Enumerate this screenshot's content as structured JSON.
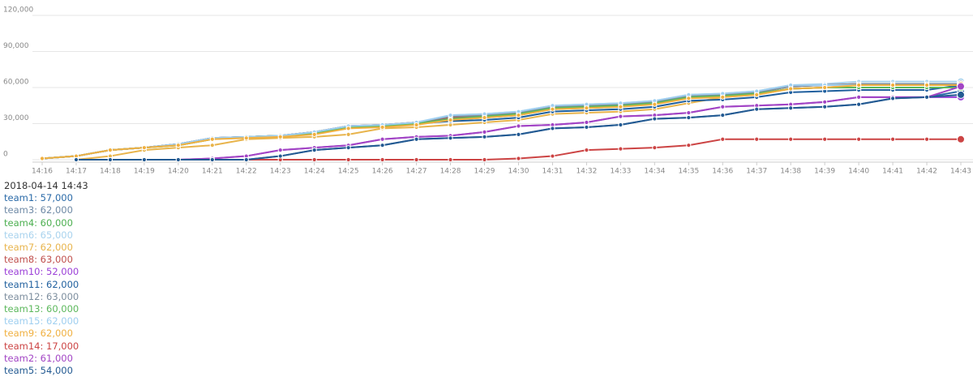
{
  "chart_data": {
    "type": "line",
    "categories": [
      "14:16",
      "14:17",
      "14:18",
      "14:19",
      "14:20",
      "14:21",
      "14:22",
      "14:23",
      "14:24",
      "14:25",
      "14:26",
      "14:27",
      "14:28",
      "14:29",
      "14:30",
      "14:31",
      "14:32",
      "14:33",
      "14:34",
      "14:35",
      "14:36",
      "14:37",
      "14:38",
      "14:39",
      "14:40",
      "14:41",
      "14:42",
      "14:43"
    ],
    "ylim": [
      0,
      120000
    ],
    "yticks": [
      0,
      {
        "value": 30000,
        "label": "30,000"
      },
      {
        "value": 60000,
        "label": "60,000"
      },
      {
        "value": 90000,
        "label": "90,000"
      },
      {
        "value": 120000,
        "label": "120,000"
      }
    ],
    "grid": true,
    "series": [
      {
        "name": "team1",
        "color": "#2a6aa8",
        "values": [
          null,
          0,
          0,
          0,
          0,
          0,
          0,
          3000,
          8000,
          10000,
          12000,
          17000,
          18000,
          19000,
          21000,
          26000,
          27000,
          29000,
          34000,
          35000,
          37000,
          42000,
          43000,
          44000,
          46000,
          51000,
          52000,
          57000
        ]
      },
      {
        "name": "team3",
        "color": "#6f8aa6",
        "values": [
          1000,
          3000,
          8000,
          10000,
          13000,
          18000,
          19000,
          20000,
          23000,
          28000,
          29000,
          31000,
          35000,
          37000,
          39000,
          44000,
          45000,
          46000,
          48000,
          53000,
          54000,
          56000,
          61000,
          62000,
          62000,
          62000,
          62000,
          62000
        ]
      },
      {
        "name": "team4",
        "color": "#4caf50",
        "values": [
          1000,
          3000,
          8000,
          10000,
          12000,
          17000,
          19000,
          20000,
          22000,
          27000,
          28000,
          30000,
          33000,
          35000,
          37000,
          42000,
          43000,
          44000,
          47000,
          52000,
          53000,
          55000,
          59000,
          60000,
          60000,
          60000,
          60000,
          60000
        ]
      },
      {
        "name": "team6",
        "color": "#a9d3ee",
        "values": [
          1000,
          3000,
          8000,
          10000,
          13000,
          18000,
          19000,
          20000,
          23000,
          28000,
          29000,
          31000,
          37000,
          38000,
          40000,
          45000,
          46000,
          47000,
          49000,
          54000,
          55000,
          57000,
          62000,
          63000,
          65000,
          65000,
          65000,
          65000
        ]
      },
      {
        "name": "team7",
        "color": "#e8b44c",
        "values": [
          null,
          0,
          3000,
          8000,
          10000,
          12000,
          17000,
          18000,
          19000,
          21000,
          26000,
          27000,
          29000,
          31000,
          33000,
          38000,
          39000,
          40000,
          42000,
          47000,
          52000,
          54000,
          59000,
          60000,
          62000,
          62000,
          62000,
          62000
        ]
      },
      {
        "name": "team8",
        "color": "#c0504d",
        "values": [
          1000,
          3000,
          8000,
          10000,
          13000,
          18000,
          19000,
          20000,
          23000,
          28000,
          29000,
          31000,
          35000,
          37000,
          39000,
          44000,
          45000,
          46000,
          48000,
          53000,
          54000,
          56000,
          61000,
          62000,
          63000,
          63000,
          63000,
          63000
        ]
      },
      {
        "name": "team10",
        "color": "#9b3fd8",
        "values": [
          null,
          0,
          0,
          0,
          0,
          1000,
          3000,
          8000,
          10000,
          12000,
          17000,
          19000,
          20000,
          23000,
          28000,
          29000,
          31000,
          36000,
          37000,
          39000,
          44000,
          45000,
          46000,
          48000,
          52000,
          52000,
          52000,
          52000
        ]
      },
      {
        "name": "team11",
        "color": "#1f5f9e",
        "values": [
          1000,
          3000,
          8000,
          10000,
          13000,
          18000,
          19000,
          20000,
          23000,
          27000,
          28000,
          30000,
          32000,
          33000,
          35000,
          40000,
          41000,
          42000,
          44000,
          49000,
          50000,
          52000,
          56000,
          57000,
          58000,
          58000,
          58000,
          62000
        ]
      },
      {
        "name": "team12",
        "color": "#7d8e9e",
        "values": [
          1000,
          3000,
          8000,
          10000,
          13000,
          18000,
          19000,
          20000,
          23000,
          28000,
          29000,
          31000,
          36000,
          37000,
          39000,
          44000,
          45000,
          46000,
          48000,
          53000,
          54000,
          56000,
          61000,
          62000,
          63000,
          63000,
          63000,
          63000
        ]
      },
      {
        "name": "team13",
        "color": "#5cb85c",
        "values": [
          1000,
          3000,
          8000,
          10000,
          12000,
          17000,
          19000,
          20000,
          22000,
          27000,
          28000,
          30000,
          34000,
          36000,
          38000,
          43000,
          44000,
          45000,
          47000,
          52000,
          53000,
          55000,
          59000,
          60000,
          60000,
          60000,
          60000,
          60000
        ]
      },
      {
        "name": "team15",
        "color": "#9fcff0",
        "values": [
          1000,
          3000,
          8000,
          10000,
          13000,
          18000,
          19000,
          20000,
          23000,
          28000,
          29000,
          31000,
          37000,
          38000,
          40000,
          45000,
          46000,
          47000,
          49000,
          54000,
          55000,
          57000,
          62000,
          62000,
          62000,
          62000,
          62000,
          62000
        ]
      },
      {
        "name": "team9",
        "color": "#f0b040",
        "values": [
          1000,
          3000,
          8000,
          10000,
          12000,
          17000,
          18000,
          19000,
          21000,
          26000,
          27000,
          29000,
          33000,
          35000,
          37000,
          42000,
          43000,
          44000,
          46000,
          51000,
          52000,
          54000,
          59000,
          60000,
          62000,
          62000,
          62000,
          62000
        ]
      },
      {
        "name": "team14",
        "color": "#cc4444",
        "values": [
          null,
          0,
          0,
          0,
          0,
          0,
          0,
          0,
          0,
          0,
          0,
          0,
          0,
          0,
          1000,
          3000,
          8000,
          9000,
          10000,
          12000,
          17000,
          17000,
          17000,
          17000,
          17000,
          17000,
          17000,
          17000
        ]
      },
      {
        "name": "team2",
        "color": "#a244c4",
        "values": [
          null,
          0,
          0,
          0,
          0,
          1000,
          3000,
          8000,
          10000,
          12000,
          17000,
          19000,
          20000,
          23000,
          28000,
          29000,
          31000,
          36000,
          37000,
          39000,
          44000,
          45000,
          46000,
          48000,
          52000,
          52000,
          52000,
          61000
        ]
      },
      {
        "name": "team5",
        "color": "#235a92",
        "values": [
          null,
          0,
          0,
          0,
          0,
          0,
          0,
          3000,
          8000,
          10000,
          12000,
          17000,
          18000,
          19000,
          21000,
          26000,
          27000,
          29000,
          34000,
          35000,
          37000,
          42000,
          43000,
          44000,
          46000,
          51000,
          52000,
          54000
        ]
      }
    ],
    "tooltip": {
      "title": "2018-04-14 14:43",
      "entries": [
        "team1: 57,000",
        "team3: 62,000",
        "team4: 60,000",
        "team6: 65,000",
        "team7: 62,000",
        "team8: 63,000",
        "team10: 52,000",
        "team11: 62,000",
        "team12: 63,000",
        "team13: 60,000",
        "team15: 62,000",
        "team9: 62,000",
        "team14: 17,000",
        "team2: 61,000",
        "team5: 54,000"
      ]
    }
  }
}
